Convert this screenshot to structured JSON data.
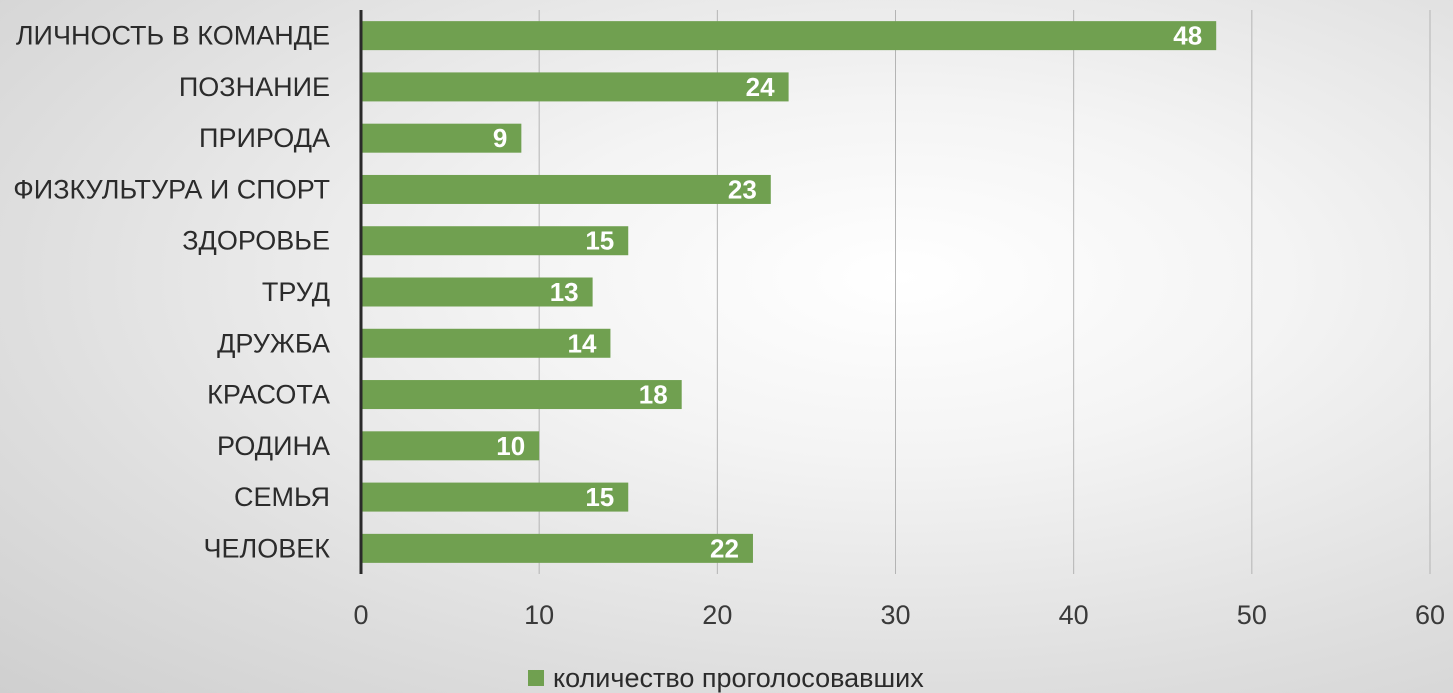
{
  "chart_data": {
    "type": "bar",
    "orientation": "horizontal",
    "categories": [
      "ЛИЧНОСТЬ В КОМАНДЕ",
      "ПОЗНАНИЕ",
      "ПРИРОДА",
      "ФИЗКУЛЬТУРА И СПОРТ",
      "ЗДОРОВЬЕ",
      "ТРУД",
      "ДРУЖБА",
      "КРАСОТА",
      "РОДИНА",
      "СЕМЬЯ",
      "ЧЕЛОВЕК"
    ],
    "series": [
      {
        "name": "количество проголосовавших",
        "values": [
          48,
          24,
          9,
          23,
          15,
          13,
          14,
          18,
          10,
          15,
          22
        ],
        "color": "#70a050"
      }
    ],
    "xlim": [
      0,
      60
    ],
    "xticks": [
      0,
      10,
      20,
      30,
      40,
      50,
      60
    ],
    "grid": "vertical",
    "legend": "bottom-center",
    "data_labels": "inside-end",
    "title": "",
    "xlabel": "",
    "ylabel": ""
  }
}
